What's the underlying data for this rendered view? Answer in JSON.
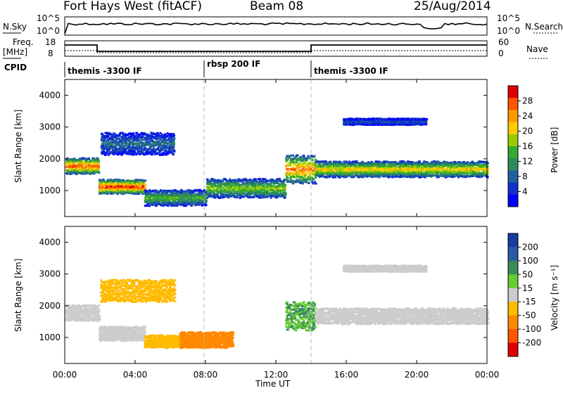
{
  "header": {
    "title": "Fort Hays West (fitACF)",
    "beam": "Beam 08",
    "date": "25/Aug/2014"
  },
  "panels": {
    "noise": {
      "left_label": "N.Sky",
      "right_label": "N.Search",
      "left_ticks": [
        "10^5",
        "10^0"
      ],
      "right_ticks": [
        "10^5",
        "10^0"
      ]
    },
    "freq": {
      "left_label": "Freq.",
      "left_unit": "[MHz]",
      "right_label": "Nave",
      "left_ticks": [
        "18",
        "8"
      ],
      "right_ticks": [
        "60",
        "0"
      ]
    },
    "cpid": {
      "label": "CPID",
      "segments": [
        "themis -3300 IF",
        "rbsp 200 IF",
        "themis -3300 IF"
      ]
    }
  },
  "power_colorbar": {
    "label": "Power [dB]",
    "ticks": [
      "28",
      "24",
      "20",
      "16",
      "12",
      "8",
      "4"
    ],
    "colors": [
      "#e00000",
      "#ff5500",
      "#ff9900",
      "#ffcc00",
      "#99cc00",
      "#33aa33",
      "#2e8b57",
      "#1f5fa0",
      "#1030cc",
      "#0000ff"
    ]
  },
  "velocity_colorbar": {
    "label": "Velocity [m s⁻¹]",
    "ticks": [
      "200",
      "100",
      "50",
      "15",
      "-15",
      "-50",
      "-100",
      "-200"
    ],
    "colors": [
      "#1a3aa0",
      "#2a5aa8",
      "#3a8a5a",
      "#66cc33",
      "#cccccc",
      "#ffbb00",
      "#ff8800",
      "#ff5500",
      "#e00000"
    ]
  },
  "chart_data": [
    {
      "type": "heatmap",
      "title": "",
      "xlabel": "",
      "ylabel": "Slant Range [km]",
      "colorbar_label": "Power [dB]",
      "yticks": [
        1000,
        2000,
        3000,
        4000
      ],
      "ylim": [
        180,
        4500
      ],
      "x_tick_labels": [
        "00:00",
        "04:00",
        "08:00",
        "12:00",
        "16:00",
        "20:00",
        "00:00"
      ],
      "bands": [
        {
          "t_start": 0.0,
          "t_end": 1.9,
          "range_center_km": 1800,
          "range_width_km": 500,
          "peak_db": 26
        },
        {
          "t_start": 1.9,
          "t_end": 4.5,
          "range_center_km": 1150,
          "range_width_km": 450,
          "peak_db": 28
        },
        {
          "t_start": 2.0,
          "t_end": 6.2,
          "range_center_km": 2500,
          "range_width_km": 700,
          "peak_db": 8
        },
        {
          "t_start": 4.5,
          "t_end": 8.0,
          "range_center_km": 800,
          "range_width_km": 500,
          "peak_db": 14
        },
        {
          "t_start": 8.0,
          "t_end": 12.5,
          "range_center_km": 1100,
          "range_width_km": 600,
          "peak_db": 16
        },
        {
          "t_start": 12.5,
          "t_end": 14.2,
          "range_center_km": 1700,
          "range_width_km": 900,
          "peak_db": 24
        },
        {
          "t_start": 14.2,
          "t_end": 24.0,
          "range_center_km": 1700,
          "range_width_km": 500,
          "peak_db": 20
        },
        {
          "t_start": 15.8,
          "t_end": 20.5,
          "range_center_km": 3200,
          "range_width_km": 200,
          "peak_db": 6
        }
      ]
    },
    {
      "type": "heatmap",
      "title": "",
      "xlabel": "Time UT",
      "ylabel": "Slant Range [km]",
      "colorbar_label": "Velocity [m s⁻¹]",
      "yticks": [
        1000,
        2000,
        3000,
        4000
      ],
      "ylim": [
        180,
        4500
      ],
      "x_tick_labels": [
        "00:00",
        "04:00",
        "08:00",
        "12:00",
        "16:00",
        "20:00",
        "00:00"
      ],
      "bands": [
        {
          "t_start": 0.0,
          "t_end": 1.9,
          "range_center_km": 1800,
          "range_width_km": 500,
          "velocity": 0
        },
        {
          "t_start": 1.9,
          "t_end": 4.5,
          "range_center_km": 1150,
          "range_width_km": 450,
          "velocity": 0
        },
        {
          "t_start": 2.0,
          "t_end": 6.2,
          "range_center_km": 2500,
          "range_width_km": 700,
          "velocity": -30
        },
        {
          "t_start": 4.5,
          "t_end": 8.0,
          "range_center_km": 900,
          "range_width_km": 400,
          "velocity": -40
        },
        {
          "t_start": 6.5,
          "t_end": 9.5,
          "range_center_km": 950,
          "range_width_km": 500,
          "velocity": -60
        },
        {
          "t_start": 12.5,
          "t_end": 14.2,
          "range_center_km": 1700,
          "range_width_km": 900,
          "velocity": 30
        },
        {
          "t_start": 14.2,
          "t_end": 24.0,
          "range_center_km": 1700,
          "range_width_km": 500,
          "velocity": 0
        },
        {
          "t_start": 15.8,
          "t_end": 20.5,
          "range_center_km": 3200,
          "range_width_km": 200,
          "velocity": 0
        }
      ]
    }
  ]
}
